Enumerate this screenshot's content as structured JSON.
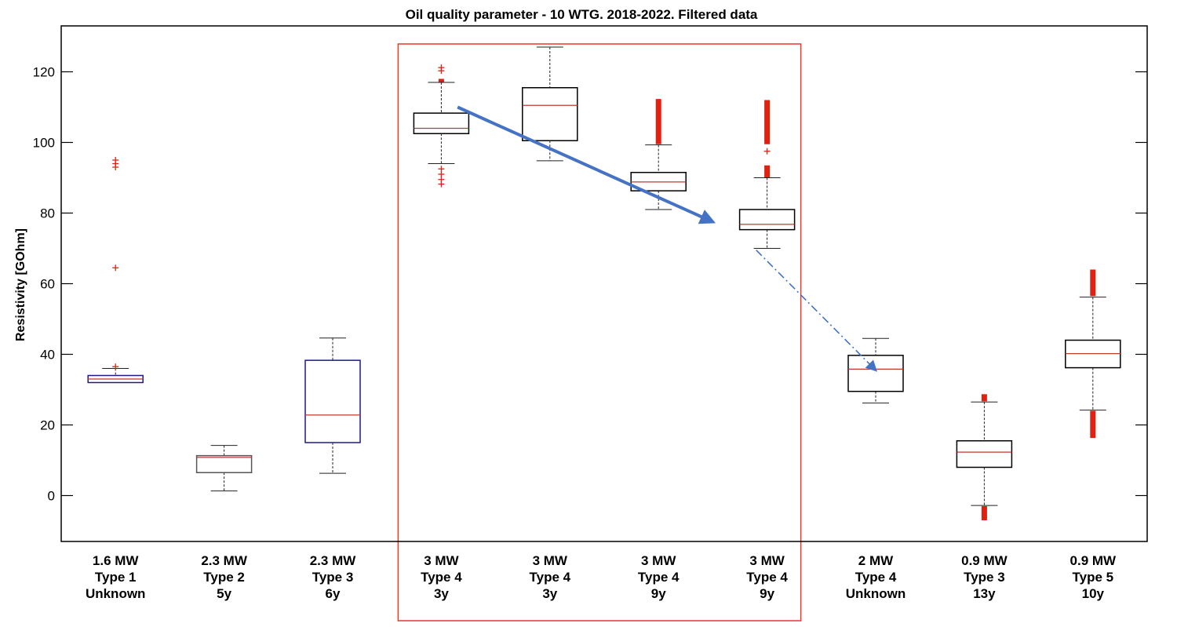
{
  "chart_data": {
    "type": "box",
    "title": "Oil quality parameter - 10 WTG. 2018-2022. Filtered data",
    "ylabel": "Resistivity [GOhm]",
    "xlabel": "",
    "ylim": [
      -13,
      133
    ],
    "yticks": [
      0,
      20,
      40,
      60,
      80,
      100,
      120
    ],
    "grid": false,
    "colors": {
      "box": "#000000",
      "box_blue": "#1a1a8c",
      "median": "#c0392b",
      "outlier": "#e02010",
      "highlight": "#e8392b",
      "arrow": "#4472c4"
    },
    "categories": [
      {
        "lines": [
          "1.6 MW",
          "Type 1",
          "Unknown"
        ],
        "whisker_low": 32,
        "q1": 32,
        "median": 33,
        "q3": 34,
        "whisker_high": 36,
        "box_color": "#1a1a8c",
        "outliers": [
          93,
          94,
          95,
          64.5,
          36.5
        ],
        "outlier_bars": []
      },
      {
        "lines": [
          "2.3 MW",
          "Type 2",
          "5y"
        ],
        "whisker_low": 1.3,
        "q1": 6.5,
        "median": 10.8,
        "q3": 11.3,
        "whisker_high": 14.2,
        "box_color": "#555555",
        "outliers": [],
        "outlier_bars": []
      },
      {
        "lines": [
          "2.3 MW",
          "Type 3",
          "6y"
        ],
        "whisker_low": 6.3,
        "q1": 15,
        "median": 22.8,
        "q3": 38.3,
        "whisker_high": 44.6,
        "box_color": "#1a1a8c",
        "outliers": [],
        "outlier_bars": []
      },
      {
        "lines": [
          "3 MW",
          "Type 4",
          "3y"
        ],
        "whisker_low": 94,
        "q1": 102.5,
        "median": 104,
        "q3": 108.3,
        "whisker_high": 117,
        "box_color": "#000000",
        "outliers": [
          120.3,
          121.2,
          88.2,
          89.5,
          91,
          92.5
        ],
        "outlier_bars": [
          [
            117,
            118
          ]
        ]
      },
      {
        "lines": [
          "3 MW",
          "Type 4",
          "3y"
        ],
        "whisker_low": 94.8,
        "q1": 100.5,
        "median": 110.5,
        "q3": 115.5,
        "whisker_high": 127,
        "box_color": "#000000",
        "outliers": [],
        "outlier_bars": []
      },
      {
        "lines": [
          "3 MW",
          "Type 4",
          "9y"
        ],
        "whisker_low": 81,
        "q1": 86.3,
        "median": 88.8,
        "q3": 91.5,
        "whisker_high": 99.3,
        "box_color": "#000000",
        "outliers": [],
        "outlier_bars": [
          [
            99.5,
            112.3
          ]
        ]
      },
      {
        "lines": [
          "3 MW",
          "Type 4",
          "9y"
        ],
        "whisker_low": 70,
        "q1": 75.3,
        "median": 76.8,
        "q3": 81,
        "whisker_high": 90,
        "box_color": "#000000",
        "outliers": [
          97.5
        ],
        "outlier_bars": [
          [
            99.5,
            112
          ],
          [
            90,
            93.5
          ]
        ]
      },
      {
        "lines": [
          "2 MW",
          "Type 4",
          "Unknown"
        ],
        "whisker_low": 26.2,
        "q1": 29.5,
        "median": 35.8,
        "q3": 39.7,
        "whisker_high": 44.5,
        "box_color": "#000000",
        "outliers": [],
        "outlier_bars": []
      },
      {
        "lines": [
          "0.9 MW",
          "Type 3",
          "13y"
        ],
        "whisker_low": -2.8,
        "q1": 8,
        "median": 12.3,
        "q3": 15.5,
        "whisker_high": 26.5,
        "box_color": "#000000",
        "outliers": [],
        "outlier_bars": [
          [
            26.7,
            28.7
          ],
          [
            -7,
            -3
          ]
        ]
      },
      {
        "lines": [
          "0.9 MW",
          "Type 5",
          "10y"
        ],
        "whisker_low": 24.2,
        "q1": 36.2,
        "median": 40.2,
        "q3": 44,
        "whisker_high": 56.2,
        "box_color": "#000000",
        "outliers": [],
        "outlier_bars": [
          [
            56.5,
            64
          ],
          [
            16.3,
            24
          ]
        ]
      }
    ],
    "highlight_range": [
      3,
      6
    ],
    "arrows": [
      {
        "style": "solid",
        "from": [
          3.15,
          110
        ],
        "to": [
          5.5,
          77.5
        ]
      },
      {
        "style": "dashdot",
        "from": [
          5.9,
          69.5
        ],
        "to": [
          7.0,
          35.5
        ]
      }
    ]
  }
}
